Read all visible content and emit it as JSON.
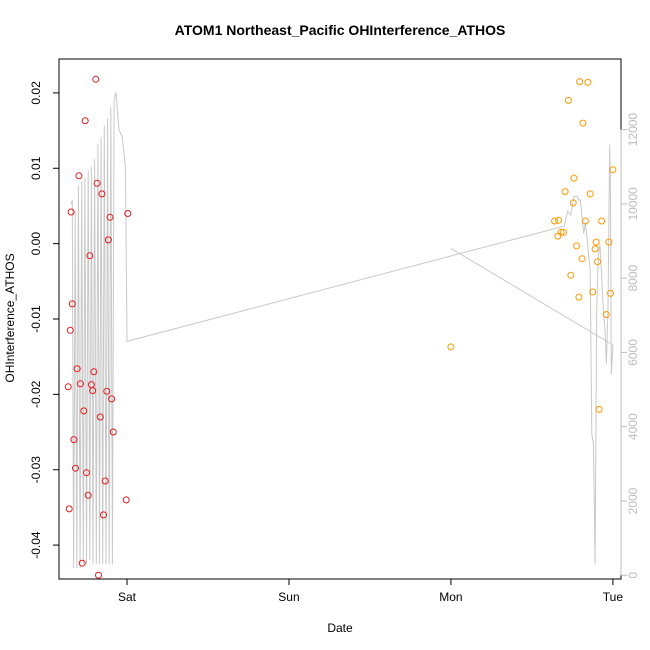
{
  "chart_data": {
    "type": "scatter",
    "title": "ATOM1 Northeast_Pacific OHInterference_ATHOS",
    "xlabel": "Date",
    "ylabel": "OHInterference_ATHOS",
    "xlim": [
      -0.42,
      3.05
    ],
    "ylim": [
      -0.0445,
      0.0245
    ],
    "x_tick_values": [
      0,
      1,
      2,
      3
    ],
    "x_tick_labels": [
      "Sat",
      "Sun",
      "Mon",
      "Tue"
    ],
    "y_ticks": [
      -0.04,
      -0.03,
      -0.02,
      -0.01,
      0.0,
      0.01,
      0.02
    ],
    "y_tick_labels": [
      "-0.04",
      "-0.03",
      "-0.02",
      "-0.01",
      "0.00",
      "0.01",
      "0.02"
    ],
    "y2lim": [
      -100,
      13900
    ],
    "y2_ticks": [
      0,
      2000,
      4000,
      6000,
      8000,
      10000,
      12000
    ],
    "y2_tick_labels": [
      "0",
      "2000",
      "4000",
      "6000",
      "8000",
      "10000",
      "12000"
    ],
    "series": [
      {
        "color": "#e41a1c",
        "points": [
          [
            -0.363,
            -0.019
          ],
          [
            -0.357,
            -0.0352
          ],
          [
            -0.35,
            -0.0115
          ],
          [
            -0.345,
            0.0042
          ],
          [
            -0.338,
            -0.008
          ],
          [
            -0.328,
            -0.026
          ],
          [
            -0.318,
            -0.0298
          ],
          [
            -0.308,
            -0.0166
          ],
          [
            -0.297,
            0.009
          ],
          [
            -0.288,
            -0.0186
          ],
          [
            -0.277,
            -0.0424
          ],
          [
            -0.267,
            -0.0222
          ],
          [
            -0.258,
            0.0163
          ],
          [
            -0.25,
            -0.0304
          ],
          [
            -0.24,
            -0.0334
          ],
          [
            -0.23,
            -0.0016
          ],
          [
            -0.22,
            -0.0187
          ],
          [
            -0.212,
            -0.0195
          ],
          [
            -0.205,
            -0.017
          ],
          [
            -0.193,
            0.0218
          ],
          [
            -0.185,
            0.008
          ],
          [
            -0.176,
            -0.044
          ],
          [
            -0.165,
            -0.023
          ],
          [
            -0.155,
            0.0066
          ],
          [
            -0.145,
            -0.036
          ],
          [
            -0.135,
            -0.0315
          ],
          [
            -0.125,
            -0.0196
          ],
          [
            -0.115,
            0.0005
          ],
          [
            -0.105,
            0.0035
          ],
          [
            -0.095,
            -0.0206
          ],
          [
            -0.085,
            -0.025
          ],
          [
            -0.005,
            -0.034
          ],
          [
            0.005,
            0.004
          ]
        ]
      },
      {
        "color": "#ff9900",
        "points": [
          [
            2.0,
            -0.0137
          ],
          [
            2.64,
            0.003
          ],
          [
            2.66,
            0.001
          ],
          [
            2.665,
            0.0031
          ],
          [
            2.68,
            0.0015
          ],
          [
            2.695,
            0.0015
          ],
          [
            2.705,
            0.0069
          ],
          [
            2.725,
            0.019
          ],
          [
            2.74,
            -0.0042
          ],
          [
            2.755,
            0.0054
          ],
          [
            2.76,
            0.0087
          ],
          [
            2.775,
            -0.0003
          ],
          [
            2.79,
            -0.0071
          ],
          [
            2.795,
            0.0215
          ],
          [
            2.81,
            -0.002
          ],
          [
            2.815,
            0.016
          ],
          [
            2.83,
            0.003
          ],
          [
            2.845,
            0.0214
          ],
          [
            2.86,
            0.0066
          ],
          [
            2.875,
            -0.0064
          ],
          [
            2.89,
            -0.0007
          ],
          [
            2.897,
            0.0002
          ],
          [
            2.905,
            -0.0024
          ],
          [
            2.915,
            -0.022
          ],
          [
            2.93,
            0.003
          ],
          [
            2.96,
            -0.0094
          ],
          [
            2.975,
            0.0002
          ],
          [
            2.985,
            -0.0066
          ],
          [
            3.0,
            0.0098
          ]
        ]
      }
    ],
    "secondary_line": {
      "color": "#c8c8c8",
      "axis": "right",
      "points": [
        [
          -0.345,
          10000
        ],
        [
          -0.338,
          10100
        ],
        [
          -0.33,
          200
        ],
        [
          -0.32,
          9800
        ],
        [
          -0.31,
          200
        ],
        [
          -0.3,
          10500
        ],
        [
          -0.29,
          200
        ],
        [
          -0.28,
          10600
        ],
        [
          -0.27,
          300
        ],
        [
          -0.26,
          10700
        ],
        [
          -0.25,
          300
        ],
        [
          -0.24,
          10900
        ],
        [
          -0.23,
          400
        ],
        [
          -0.22,
          11000
        ],
        [
          -0.21,
          300
        ],
        [
          -0.2,
          11200
        ],
        [
          -0.19,
          300
        ],
        [
          -0.18,
          11600
        ],
        [
          -0.17,
          300
        ],
        [
          -0.16,
          11800
        ],
        [
          -0.15,
          300
        ],
        [
          -0.14,
          12100
        ],
        [
          -0.13,
          300
        ],
        [
          -0.12,
          12300
        ],
        [
          -0.11,
          300
        ],
        [
          -0.1,
          12600
        ],
        [
          -0.09,
          300
        ],
        [
          -0.08,
          12800
        ],
        [
          -0.068,
          13000
        ],
        [
          -0.05,
          12000
        ],
        [
          -0.03,
          11800
        ],
        [
          -0.01,
          11000
        ],
        [
          0.0,
          6300
        ],
        [
          2.7,
          9400
        ],
        [
          2.72,
          9800
        ],
        [
          2.74,
          9700
        ],
        [
          2.76,
          10200
        ],
        [
          2.78,
          10200
        ],
        [
          2.79,
          10100
        ],
        [
          2.8,
          10100
        ],
        [
          2.81,
          9600
        ],
        [
          2.82,
          9200
        ],
        [
          2.83,
          9500
        ],
        [
          2.84,
          9100
        ],
        [
          2.85,
          8600
        ],
        [
          2.86,
          8200
        ],
        [
          2.87,
          3800
        ],
        [
          2.88,
          3500
        ],
        [
          2.89,
          300
        ],
        [
          2.9,
          7200
        ],
        [
          2.91,
          8600
        ],
        [
          2.92,
          8900
        ],
        [
          2.93,
          8100
        ],
        [
          2.94,
          7200
        ],
        [
          2.95,
          6700
        ],
        [
          2.96,
          5700
        ],
        [
          2.97,
          7200
        ],
        [
          2.98,
          11600
        ],
        [
          2.985,
          10300
        ],
        [
          2.99,
          5400
        ],
        [
          3.0,
          6200
        ],
        [
          2.0,
          8800
        ]
      ]
    },
    "grid": false,
    "legend": "none"
  }
}
